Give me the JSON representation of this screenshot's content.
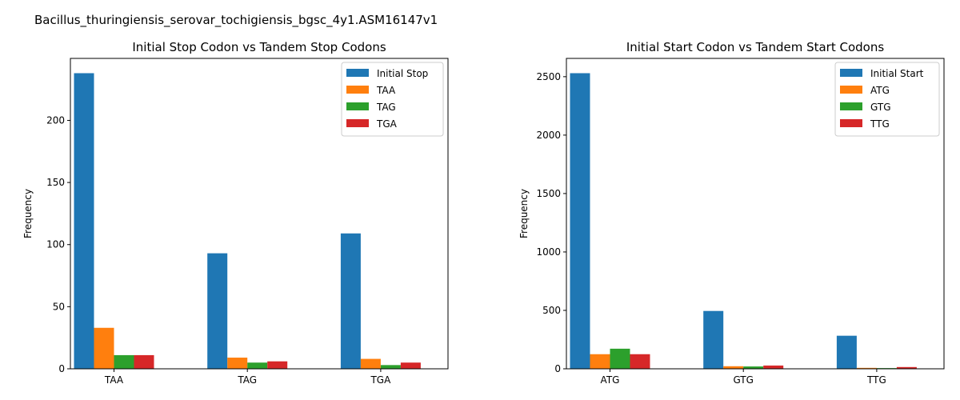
{
  "figure": {
    "suptitle": "Bacillus_thuringiensis_serovar_tochigiensis_bgsc_4y1.ASM16147v1"
  },
  "colors": [
    "#1f77b4",
    "#ff7f0e",
    "#2ca02c",
    "#d62728"
  ],
  "chart_data": [
    {
      "type": "bar",
      "title": "Initial Stop Codon vs Tandem Stop Codons",
      "xlabel": "",
      "ylabel": "Frequency",
      "categories": [
        "TAA",
        "TAG",
        "TGA"
      ],
      "series": [
        {
          "name": "Initial Stop",
          "values": [
            238,
            93,
            109
          ]
        },
        {
          "name": "TAA",
          "values": [
            33,
            9,
            8
          ]
        },
        {
          "name": "TAG",
          "values": [
            11,
            5,
            3
          ]
        },
        {
          "name": "TGA",
          "values": [
            11,
            6,
            5
          ]
        }
      ],
      "ylim": [
        0,
        249.9
      ],
      "yticks": [
        0,
        50,
        100,
        150,
        200
      ],
      "grid": false,
      "legend": "top-right"
    },
    {
      "type": "bar",
      "title": "Initial Start Codon vs Tandem Start Codons",
      "xlabel": "",
      "ylabel": "Frequency",
      "categories": [
        "ATG",
        "GTG",
        "TTG"
      ],
      "series": [
        {
          "name": "Initial Start",
          "values": [
            2530,
            495,
            283
          ]
        },
        {
          "name": "ATG",
          "values": [
            125,
            22,
            8
          ]
        },
        {
          "name": "GTG",
          "values": [
            172,
            20,
            6
          ]
        },
        {
          "name": "TTG",
          "values": [
            125,
            28,
            15
          ]
        }
      ],
      "ylim": [
        0,
        2656.5
      ],
      "yticks": [
        0,
        500,
        1000,
        1500,
        2000,
        2500
      ],
      "grid": false,
      "legend": "top-right"
    }
  ]
}
